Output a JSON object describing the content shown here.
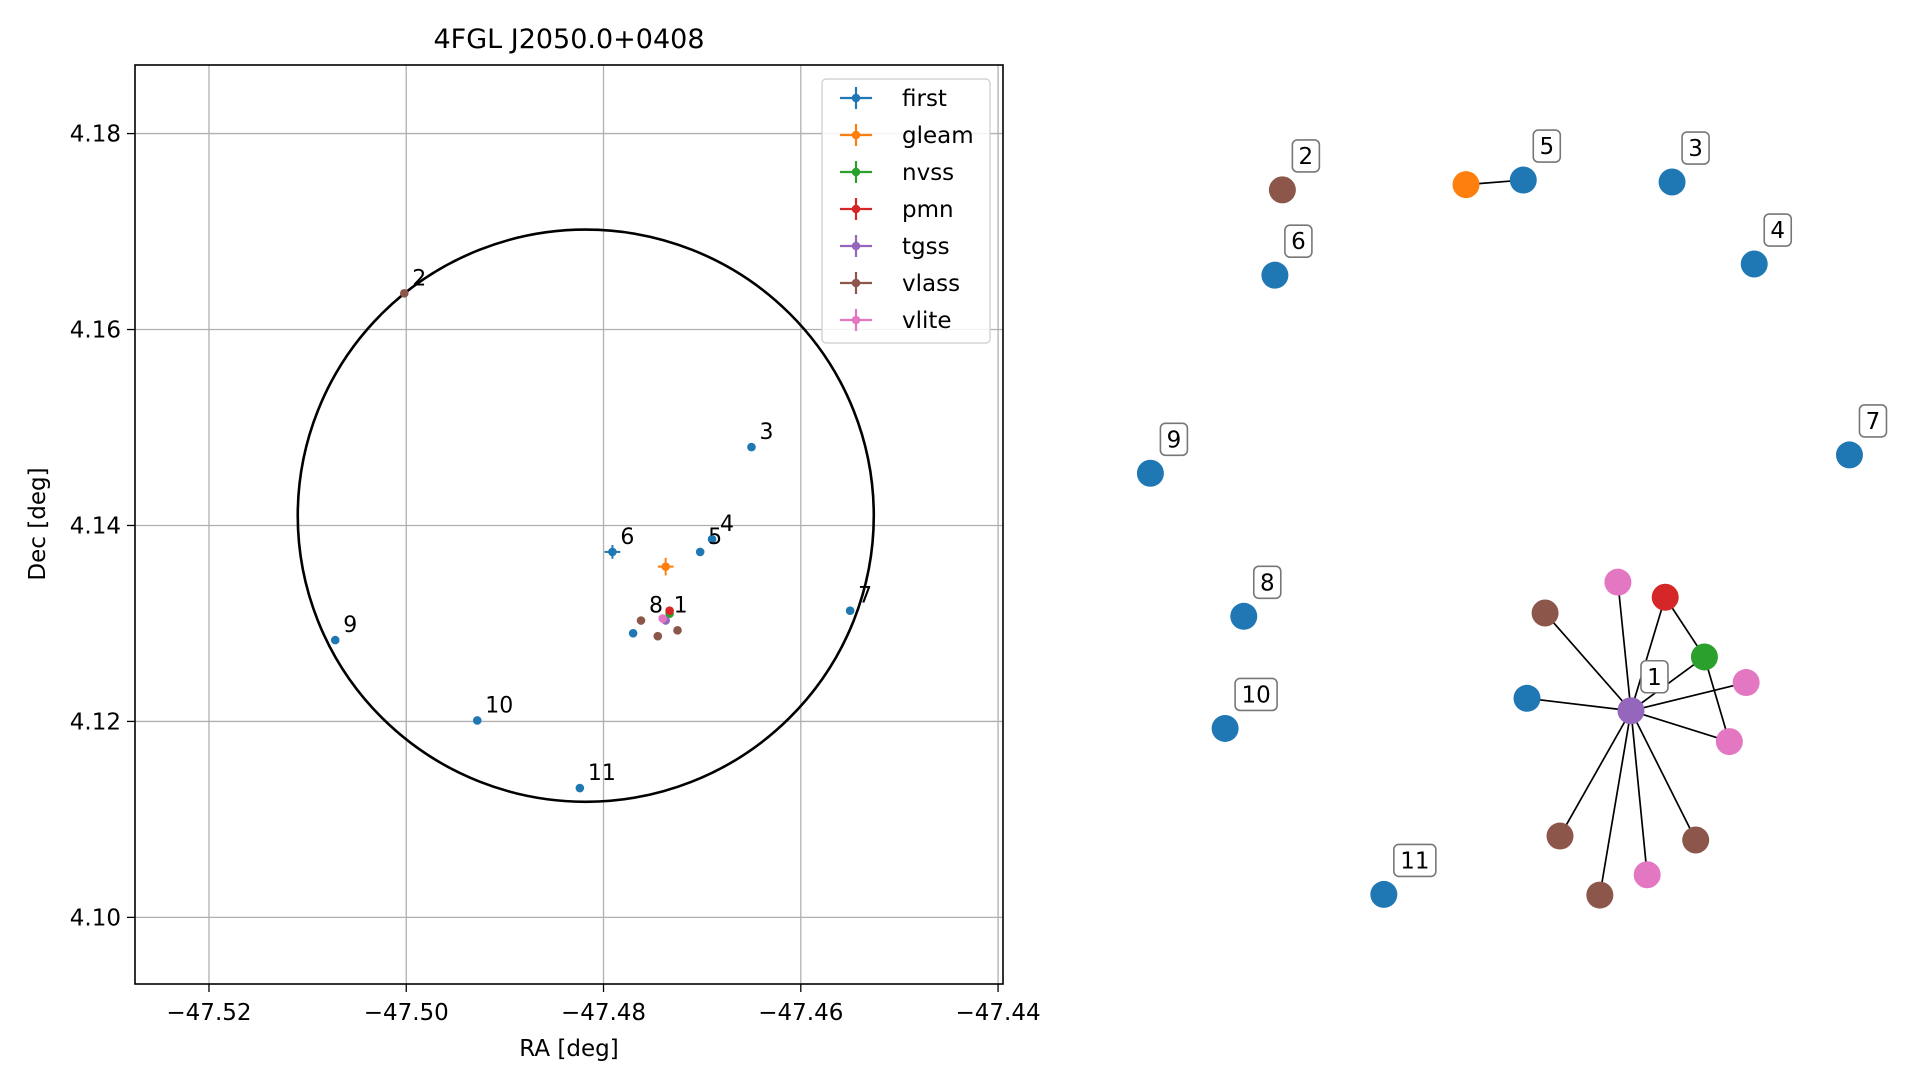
{
  "chart_data": [
    {
      "type": "scatter",
      "title": "4FGL J2050.0+0408",
      "xlabel": "RA [deg]",
      "ylabel": "Dec [deg]",
      "xlim": [
        -47.5275,
        -47.4395
      ],
      "ylim": [
        4.0932,
        4.187
      ],
      "xticks": [
        -47.52,
        -47.5,
        -47.48,
        -47.46,
        -47.44
      ],
      "xtick_labels": [
        "−47.52",
        "−47.50",
        "−47.48",
        "−47.46",
        "−47.44"
      ],
      "yticks": [
        4.1,
        4.12,
        4.14,
        4.16,
        4.18
      ],
      "ytick_labels": [
        "4.10",
        "4.12",
        "4.14",
        "4.16",
        "4.18"
      ],
      "grid": true,
      "legend_position": "top-right",
      "error_circle": {
        "ra": -47.4818,
        "dec": 4.141,
        "radius": 0.0292
      },
      "series": [
        {
          "name": "first",
          "color": "#1f77b4",
          "points": [
            {
              "ra": -47.4702,
              "dec": 4.1373,
              "label": "5"
            },
            {
              "ra": -47.469,
              "dec": 4.1386,
              "label": "4"
            },
            {
              "ra": -47.465,
              "dec": 4.148,
              "label": "3"
            },
            {
              "ra": -47.4791,
              "dec": 4.1373,
              "label": "6",
              "xerr": 0.0008,
              "yerr": 0.0007
            },
            {
              "ra": -47.455,
              "dec": 4.1313,
              "label": "7"
            },
            {
              "ra": -47.5072,
              "dec": 4.1283,
              "label": "9"
            },
            {
              "ra": -47.4928,
              "dec": 4.1201,
              "label": "10"
            },
            {
              "ra": -47.4824,
              "dec": 4.1132,
              "label": "11"
            },
            {
              "ra": -47.477,
              "dec": 4.129,
              "label": ""
            }
          ]
        },
        {
          "name": "gleam",
          "color": "#ff7f0e",
          "points": [
            {
              "ra": -47.4737,
              "dec": 4.1358,
              "label": "",
              "xerr": 0.0008,
              "yerr": 0.0009
            }
          ]
        },
        {
          "name": "nvss",
          "color": "#2ca02c",
          "points": [
            {
              "ra": -47.4733,
              "dec": 4.131,
              "label": ""
            }
          ]
        },
        {
          "name": "pmn",
          "color": "#d62728",
          "points": [
            {
              "ra": -47.4733,
              "dec": 4.1313,
              "label": ""
            }
          ]
        },
        {
          "name": "tgss",
          "color": "#9467bd",
          "points": [
            {
              "ra": -47.4737,
              "dec": 4.1303,
              "label": "1"
            }
          ]
        },
        {
          "name": "vlass",
          "color": "#8c564b",
          "points": [
            {
              "ra": -47.5002,
              "dec": 4.1637,
              "label": "2"
            },
            {
              "ra": -47.4762,
              "dec": 4.1303,
              "label": "8"
            },
            {
              "ra": -47.4745,
              "dec": 4.1287,
              "label": ""
            },
            {
              "ra": -47.4725,
              "dec": 4.1293,
              "label": ""
            }
          ]
        },
        {
          "name": "vlite",
          "color": "#e377c2",
          "points": [
            {
              "ra": -47.474,
              "dec": 4.1305,
              "label": ""
            }
          ]
        }
      ]
    },
    {
      "type": "diagram",
      "nodes": [
        {
          "id": "n2",
          "color": "#8c564b",
          "x": 0.0745,
          "y": 0.927,
          "label": "2"
        },
        {
          "id": "n5a",
          "color": "#ff7f0e",
          "x": 0.3695,
          "y": 0.935,
          "label": ""
        },
        {
          "id": "n5b",
          "color": "#1f77b4",
          "x": 0.4615,
          "y": 0.942,
          "label": "5"
        },
        {
          "id": "n3",
          "color": "#1f77b4",
          "x": 0.7005,
          "y": 0.939,
          "label": "3"
        },
        {
          "id": "n4",
          "color": "#1f77b4",
          "x": 0.8325,
          "y": 0.814,
          "label": "4"
        },
        {
          "id": "n6",
          "color": "#1f77b4",
          "x": 0.0625,
          "y": 0.797,
          "label": "6"
        },
        {
          "id": "n9",
          "color": "#1f77b4",
          "x": -0.1375,
          "y": 0.495,
          "label": "9"
        },
        {
          "id": "n7",
          "color": "#1f77b4",
          "x": 0.9855,
          "y": 0.523,
          "label": "7"
        },
        {
          "id": "n8",
          "color": "#1f77b4",
          "x": 0.0125,
          "y": 0.277,
          "label": "8"
        },
        {
          "id": "n10",
          "color": "#1f77b4",
          "x": -0.0175,
          "y": 0.106,
          "label": "10"
        },
        {
          "id": "n11",
          "color": "#1f77b4",
          "x": 0.2375,
          "y": -0.147,
          "label": "11"
        },
        {
          "id": "n1",
          "color": "#9467bd",
          "x": 0.6345,
          "y": 0.133,
          "label": "1"
        },
        {
          "id": "c_vlite1",
          "color": "#e377c2",
          "x": 0.6135,
          "y": 0.329,
          "label": ""
        },
        {
          "id": "c_pmn",
          "color": "#d62728",
          "x": 0.6895,
          "y": 0.306,
          "label": ""
        },
        {
          "id": "c_nvss",
          "color": "#2ca02c",
          "x": 0.7525,
          "y": 0.215,
          "label": ""
        },
        {
          "id": "c_vlite2",
          "color": "#e377c2",
          "x": 0.8195,
          "y": 0.176,
          "label": ""
        },
        {
          "id": "c_vlite3",
          "color": "#e377c2",
          "x": 0.7925,
          "y": 0.086,
          "label": ""
        },
        {
          "id": "c_vlass1",
          "color": "#8c564b",
          "x": 0.7385,
          "y": -0.064,
          "label": ""
        },
        {
          "id": "c_vlite4",
          "color": "#e377c2",
          "x": 0.6605,
          "y": -0.117,
          "label": ""
        },
        {
          "id": "c_vlass2",
          "color": "#8c564b",
          "x": 0.5845,
          "y": -0.148,
          "label": ""
        },
        {
          "id": "c_vlass3",
          "color": "#8c564b",
          "x": 0.5205,
          "y": -0.058,
          "label": ""
        },
        {
          "id": "c_first",
          "color": "#1f77b4",
          "x": 0.4675,
          "y": 0.152,
          "label": ""
        },
        {
          "id": "c_vlass4",
          "color": "#8c564b",
          "x": 0.4965,
          "y": 0.282,
          "label": ""
        }
      ],
      "edges": [
        [
          "n5a",
          "n5b"
        ],
        [
          "n1",
          "c_vlite1"
        ],
        [
          "n1",
          "c_pmn"
        ],
        [
          "n1",
          "c_nvss"
        ],
        [
          "n1",
          "c_vlite2"
        ],
        [
          "n1",
          "c_vlite3"
        ],
        [
          "n1",
          "c_vlass1"
        ],
        [
          "n1",
          "c_vlite4"
        ],
        [
          "n1",
          "c_vlass2"
        ],
        [
          "n1",
          "c_vlass3"
        ],
        [
          "n1",
          "c_first"
        ],
        [
          "n1",
          "c_vlass4"
        ],
        [
          "c_pmn",
          "c_nvss"
        ],
        [
          "c_nvss",
          "c_vlite3"
        ]
      ]
    }
  ]
}
